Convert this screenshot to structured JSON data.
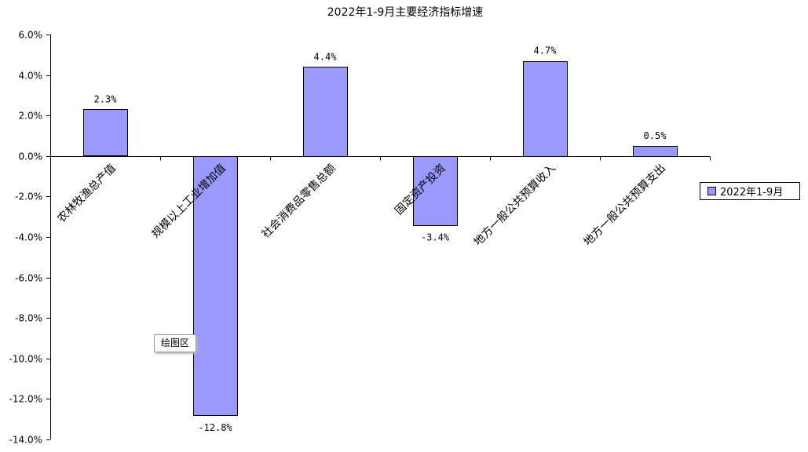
{
  "chart_data": {
    "type": "bar",
    "title": "2022年1-9月主要经济指标增速",
    "categories": [
      "农林牧渔总产值",
      "规模以上工业增加值",
      "社会消费品零售总额",
      "固定资产投资",
      "地方一般公共预算收入",
      "地方一般公共预算支出"
    ],
    "values": [
      2.3,
      -12.8,
      4.4,
      -3.4,
      4.7,
      0.5
    ],
    "data_labels": [
      "2.3%",
      "-12.8%",
      "4.4%",
      "-3.4%",
      "4.7%",
      "0.5%"
    ],
    "series": [
      {
        "name": "2022年1-9月",
        "values": [
          2.3,
          -12.8,
          4.4,
          -3.4,
          4.7,
          0.5
        ]
      }
    ],
    "ylim": [
      -14.0,
      6.0
    ],
    "yticks": [
      "6.0%",
      "4.0%",
      "2.0%",
      "0.0%",
      "-2.0%",
      "-4.0%",
      "-6.0%",
      "-8.0%",
      "-10.0%",
      "-12.0%",
      "-14.0%"
    ],
    "xlabel": "",
    "ylabel": "",
    "grid": false,
    "legend_position": "right",
    "bar_color": "#9999ff"
  },
  "tooltip_text": "绘图区"
}
